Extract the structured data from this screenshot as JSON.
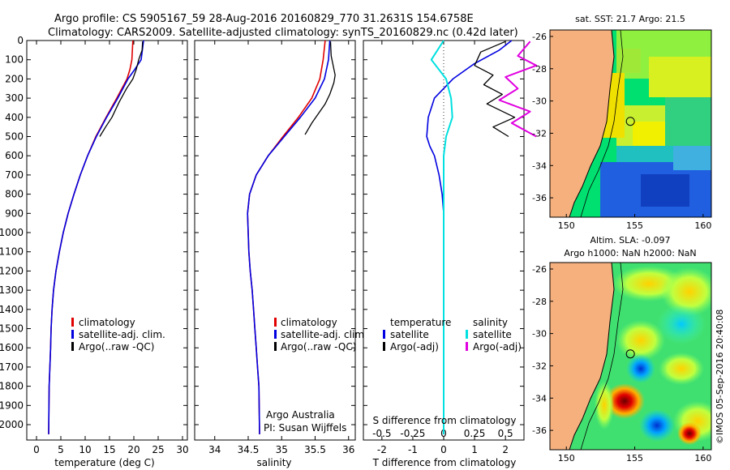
{
  "header": {
    "title_line1": "Argo profile: CS 5905167_59 28-Aug-2016 20160829_770 31.2631S 154.6758E",
    "title_line2": "Climatology: CARS2009. Satellite-adjusted climatology: synTS_20160829.nc (0.42d later)"
  },
  "colors": {
    "climatology": "#e00000",
    "satellite": "#0000e0",
    "argo": "#000000",
    "salinity_satellite": "#00e0e0",
    "salinity_argo": "#e000e0",
    "land": "#f5b07e"
  },
  "chart_data": [
    {
      "type": "line",
      "name": "temperature",
      "xlabel": "temperature (deg C)",
      "ylabel": "",
      "xlim": [
        -2,
        31
      ],
      "ylim": [
        0,
        2080
      ],
      "y_inverted": true,
      "xticks": [
        0,
        5,
        10,
        15,
        20,
        25,
        30
      ],
      "yticks": [
        0,
        100,
        200,
        300,
        400,
        500,
        600,
        700,
        800,
        900,
        1000,
        1100,
        1200,
        1300,
        1400,
        1500,
        1600,
        1700,
        1800,
        1900,
        2000
      ],
      "legend": [
        "climatology",
        "satellite-adj. clim.",
        "Argo(..raw -QC)"
      ],
      "series": [
        {
          "name": "climatology",
          "x": [
            19.8,
            19.6,
            19.2,
            18.6,
            16.5,
            14.3,
            12.2,
            10.5,
            9.0,
            7.7,
            6.5,
            5.5,
            4.7,
            4.0,
            3.5,
            3.2,
            3.0,
            2.9,
            2.75,
            2.6,
            2.5
          ],
          "y": [
            0,
            100,
            150,
            200,
            300,
            400,
            500,
            600,
            700,
            800,
            900,
            1000,
            1100,
            1200,
            1300,
            1400,
            1500,
            1600,
            1700,
            1800,
            2050
          ]
        },
        {
          "name": "satellite-adj. clim.",
          "x": [
            22.0,
            21.5,
            20.2,
            18.8,
            16.7,
            14.4,
            12.3,
            10.5,
            9.0,
            7.7,
            6.5,
            5.5,
            4.7,
            4.0,
            3.5,
            3.2,
            3.0,
            2.9,
            2.75,
            2.6,
            2.5
          ],
          "y": [
            0,
            100,
            150,
            200,
            300,
            400,
            500,
            600,
            700,
            800,
            900,
            1000,
            1100,
            1200,
            1300,
            1400,
            1500,
            1600,
            1700,
            1800,
            2050
          ]
        },
        {
          "name": "Argo(..raw -QC)",
          "x": [
            21.8,
            21.7,
            21.0,
            20.5,
            19.8,
            18.5,
            17.0,
            15.5,
            14.2,
            13.0
          ],
          "y": [
            5,
            50,
            100,
            150,
            200,
            250,
            320,
            400,
            450,
            500
          ]
        }
      ]
    },
    {
      "type": "line",
      "name": "salinity",
      "xlabel": "salinity",
      "ylabel": "",
      "xlim": [
        33.7,
        36.1
      ],
      "ylim": [
        0,
        2080
      ],
      "y_inverted": true,
      "xticks": [
        34,
        34.5,
        35,
        35.5,
        36
      ],
      "legend": [
        "climatology",
        "satellite-adj. clim.",
        "Argo(..raw -QC)"
      ],
      "series": [
        {
          "name": "climatology",
          "x": [
            35.65,
            35.62,
            35.57,
            35.45,
            35.25,
            35.02,
            34.8,
            34.62,
            34.52,
            34.49,
            34.5,
            34.51,
            34.53,
            34.56,
            34.58,
            34.6,
            34.62,
            34.64,
            34.66,
            34.67
          ],
          "y": [
            0,
            100,
            200,
            300,
            400,
            500,
            600,
            700,
            800,
            900,
            1000,
            1100,
            1200,
            1300,
            1400,
            1500,
            1600,
            1700,
            1800,
            2050
          ]
        },
        {
          "name": "satellite-adj. clim.",
          "x": [
            35.72,
            35.7,
            35.64,
            35.5,
            35.28,
            35.04,
            34.8,
            34.62,
            34.52,
            34.49,
            34.5,
            34.51,
            34.53,
            34.56,
            34.58,
            34.6,
            34.62,
            34.64,
            34.66,
            34.67
          ],
          "y": [
            0,
            100,
            200,
            300,
            400,
            500,
            600,
            700,
            800,
            900,
            1000,
            1100,
            1200,
            1300,
            1400,
            1500,
            1600,
            1700,
            1800,
            2050
          ]
        },
        {
          "name": "Argo(..raw -QC)",
          "x": [
            35.73,
            35.74,
            35.8,
            35.78,
            35.72,
            35.65,
            35.55,
            35.45,
            35.35
          ],
          "y": [
            5,
            80,
            180,
            220,
            280,
            330,
            380,
            430,
            490
          ]
        }
      ],
      "annotation_lines": [
        "Argo Australia",
        "PI: Susan Wijffels"
      ]
    },
    {
      "type": "line",
      "name": "difference",
      "xlabel": "T difference from climatology",
      "xlabel_top": "S difference from climatology",
      "xlim": [
        -2.6,
        2.6
      ],
      "ylim": [
        0,
        2080
      ],
      "y_inverted": true,
      "xticks_T": [
        -2,
        -1,
        0,
        1,
        2
      ],
      "xticks_S": [
        -0.5,
        -0.25,
        0,
        0.25,
        0.5
      ],
      "xtick_labels_S": [
        "-0.5",
        "-0.25",
        "0",
        "0.25",
        "0.5"
      ],
      "legend_temperature_title": "temperature",
      "legend_salinity_title": "salinity",
      "legend_temperature": [
        "satellite",
        "Argo(-adj)"
      ],
      "legend_salinity": [
        "satellite",
        "Argo(-adj)"
      ],
      "series": [
        {
          "name": "satellite",
          "x": [
            2.2,
            1.8,
            1.0,
            0.3,
            -0.3,
            -0.5,
            -0.55,
            -0.45,
            -0.3,
            -0.15,
            -0.05,
            0.0,
            0.0,
            0.0,
            0.0,
            0.0
          ],
          "y": [
            0,
            50,
            120,
            200,
            300,
            400,
            500,
            550,
            600,
            700,
            800,
            900,
            1000,
            1200,
            1500,
            2050
          ]
        },
        {
          "name": "Argo(-adj)",
          "x": [
            2.0,
            1.2,
            1.0,
            1.6,
            1.3,
            1.9,
            1.4,
            2.3,
            1.6,
            2.1
          ],
          "y": [
            5,
            60,
            130,
            180,
            230,
            280,
            330,
            400,
            450,
            500
          ]
        },
        {
          "name": "salinity satellite",
          "x": [
            0.0,
            -0.1,
            0.02,
            0.06,
            0.07,
            0.02,
            0.0,
            0.0,
            0.0,
            0.0
          ],
          "y": [
            0,
            100,
            200,
            300,
            400,
            500,
            600,
            800,
            1200,
            2050
          ]
        },
        {
          "name": "salinity Argo(-adj)",
          "x": [
            0.7,
            0.6,
            0.75,
            0.5,
            0.6,
            0.45,
            0.7,
            0.55,
            0.75
          ],
          "y": [
            5,
            80,
            130,
            190,
            250,
            310,
            370,
            430,
            500
          ]
        }
      ]
    },
    {
      "type": "heatmap",
      "name": "sst_map",
      "title": "sat. SST: 21.7 Argo: 21.5",
      "xticks": [
        150,
        155,
        160
      ],
      "yticks": [
        -26,
        -28,
        -30,
        -32,
        -34,
        -36
      ],
      "xlim": [
        148.8,
        160.6
      ],
      "ylim": [
        -37.2,
        -25.6
      ],
      "float_position": [
        154.68,
        -31.26
      ]
    },
    {
      "type": "heatmap",
      "name": "sla_map",
      "title_line1": "Altim. SLA: -0.097",
      "title_line2": "Argo h1000: NaN h2000: NaN",
      "xticks": [
        150,
        155,
        160
      ],
      "yticks": [
        -26,
        -28,
        -30,
        -32,
        -34,
        -36
      ],
      "xlim": [
        148.8,
        160.6
      ],
      "ylim": [
        -37.2,
        -25.6
      ],
      "float_position": [
        154.68,
        -31.26
      ]
    }
  ],
  "footer": {
    "stamp": "©IMOS 05-Sep-2016 20:40:08"
  }
}
